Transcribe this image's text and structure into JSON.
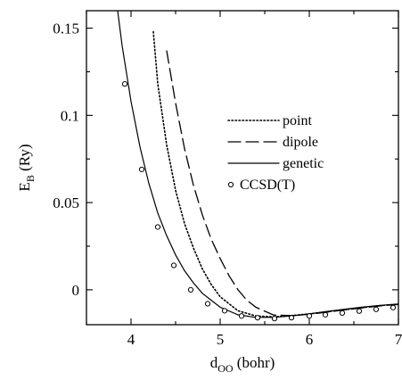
{
  "chart_data": {
    "type": "line",
    "xlabel_main": "d",
    "xlabel_sub": "OO",
    "xlabel_rest": " (bohr)",
    "ylabel_main": "E",
    "ylabel_sub": "B",
    "ylabel_rest": " (Ry)",
    "xlim": [
      3.5,
      7.0
    ],
    "ylim": [
      -0.02,
      0.16
    ],
    "xticks": [
      4,
      5,
      6,
      7
    ],
    "xtick_labels": [
      "4",
      "5",
      "6",
      "7"
    ],
    "yticks": [
      0.0,
      0.05,
      0.1,
      0.15
    ],
    "ytick_labels": [
      "0",
      "0.05",
      "0.1",
      "0.15"
    ],
    "grid": false,
    "legend_position": "center-right",
    "series": [
      {
        "name": "point",
        "style": "dotted",
        "x": [
          4.25,
          4.3,
          4.4,
          4.5,
          4.6,
          4.7,
          4.8,
          4.9,
          5.0,
          5.2,
          5.4,
          5.6,
          5.8,
          6.0,
          6.2,
          6.4,
          6.6,
          6.8,
          7.0
        ],
        "y": [
          0.148,
          0.118,
          0.083,
          0.057,
          0.038,
          0.024,
          0.012,
          0.003,
          -0.004,
          -0.012,
          -0.015,
          -0.0155,
          -0.0148,
          -0.0138,
          -0.0126,
          -0.0114,
          -0.0102,
          -0.009,
          -0.0082
        ]
      },
      {
        "name": "dipole",
        "style": "dashed",
        "x": [
          4.4,
          4.5,
          4.6,
          4.7,
          4.8,
          4.9,
          5.0,
          5.1,
          5.2,
          5.3,
          5.4,
          5.6,
          5.8,
          6.0,
          6.2,
          6.4,
          6.6,
          6.8,
          7.0
        ],
        "y": [
          0.137,
          0.107,
          0.081,
          0.06,
          0.043,
          0.029,
          0.018,
          0.008,
          0.0,
          -0.006,
          -0.01,
          -0.0145,
          -0.0148,
          -0.014,
          -0.0128,
          -0.0115,
          -0.0103,
          -0.0092,
          -0.0084
        ]
      },
      {
        "name": "genetic",
        "style": "solid",
        "x": [
          3.85,
          3.9,
          4.0,
          4.1,
          4.2,
          4.3,
          4.4,
          4.5,
          4.6,
          4.7,
          4.8,
          4.9,
          5.0,
          5.2,
          5.4,
          5.6,
          5.8,
          6.0,
          6.2,
          6.4,
          6.6,
          6.8,
          7.0
        ],
        "y": [
          0.16,
          0.14,
          0.108,
          0.082,
          0.061,
          0.044,
          0.031,
          0.02,
          0.011,
          0.004,
          -0.002,
          -0.006,
          -0.01,
          -0.0143,
          -0.0158,
          -0.0158,
          -0.015,
          -0.0138,
          -0.0124,
          -0.0111,
          -0.0099,
          -0.0089,
          -0.0082
        ]
      },
      {
        "name": "CCSD(T)",
        "style": "markers-open-circle",
        "x": [
          3.93,
          4.12,
          4.3,
          4.48,
          4.67,
          4.86,
          5.05,
          5.24,
          5.42,
          5.61,
          5.8,
          6.0,
          6.18,
          6.37,
          6.56,
          6.75,
          6.94
        ],
        "y": [
          0.118,
          0.069,
          0.036,
          0.014,
          0.0,
          -0.008,
          -0.012,
          -0.015,
          -0.016,
          -0.0165,
          -0.016,
          -0.015,
          -0.0143,
          -0.0133,
          -0.0122,
          -0.0112,
          -0.0102
        ]
      }
    ]
  }
}
